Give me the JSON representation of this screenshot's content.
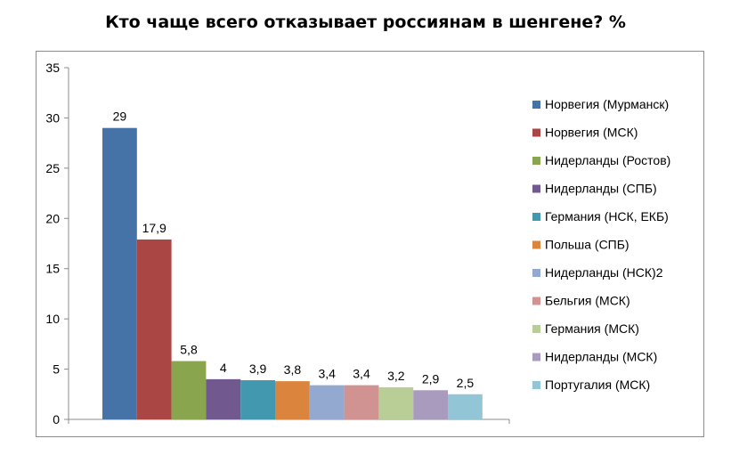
{
  "chart_data": {
    "type": "bar",
    "title": "Кто чаще всего отказывает россиянам в шенгене? %",
    "xlabel": "",
    "ylabel": "",
    "ylim": [
      0,
      35
    ],
    "yticks": [
      "0",
      "5",
      "10",
      "15",
      "20",
      "25",
      "30",
      "35"
    ],
    "grid": false,
    "legend_position": "right",
    "series": [
      {
        "name": "Норвегия  (Мурманск)",
        "value": 29,
        "label": "29",
        "color": "#4572A7"
      },
      {
        "name": "Норвегия  (МСК)",
        "value": 17.9,
        "label": "17,9",
        "color": "#AA4643"
      },
      {
        "name": "Нидерланды  (Ростов)",
        "value": 5.8,
        "label": "5,8",
        "color": "#89A54E"
      },
      {
        "name": "Нидерланды  (СПБ)",
        "value": 4,
        "label": "4",
        "color": "#71588F"
      },
      {
        "name": "Германия  (НСК, ЕКБ)",
        "value": 3.9,
        "label": "3,9",
        "color": "#4198AF"
      },
      {
        "name": "Польша (СПБ)",
        "value": 3.8,
        "label": "3,8",
        "color": "#DB843D"
      },
      {
        "name": "Нидерланды  (НСК)2",
        "value": 3.4,
        "label": "3,4",
        "color": "#93A9CF"
      },
      {
        "name": "Бельгия (МСК)",
        "value": 3.4,
        "label": "3,4",
        "color": "#D19392"
      },
      {
        "name": "Германия  (МСК)",
        "value": 3.2,
        "label": "3,2",
        "color": "#B9CD96"
      },
      {
        "name": "Нидерланды  (МСК)",
        "value": 2.9,
        "label": "2,9",
        "color": "#A99BBD"
      },
      {
        "name": "Португалия (МСК)",
        "value": 2.5,
        "label": "2,5",
        "color": "#92C5D5"
      }
    ]
  }
}
